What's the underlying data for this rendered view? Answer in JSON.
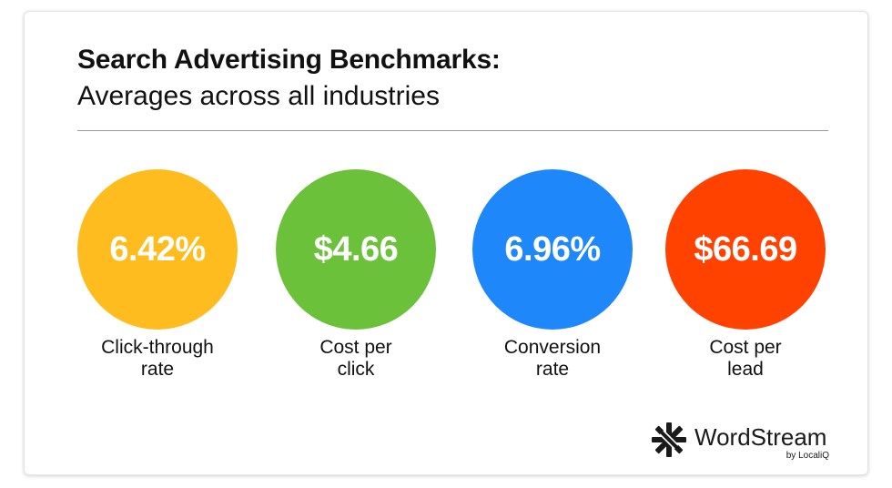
{
  "header": {
    "title": "Search Advertising Benchmarks:",
    "subtitle": "Averages across all industries"
  },
  "metrics": [
    {
      "value": "6.42%",
      "label_line1": "Click-through",
      "label_line2": "rate",
      "color": "#FFBC1F"
    },
    {
      "value": "$4.66",
      "label_line1": "Cost per",
      "label_line2": "click",
      "color": "#6CC13A"
    },
    {
      "value": "6.96%",
      "label_line1": "Conversion",
      "label_line2": "rate",
      "color": "#1E88FA"
    },
    {
      "value": "$66.69",
      "label_line1": "Cost per",
      "label_line2": "lead",
      "color": "#FF4200"
    }
  ],
  "logo": {
    "icon": "wordstream-star-icon",
    "wordmark": "WordStream",
    "tagline": "by LocaliQ"
  }
}
